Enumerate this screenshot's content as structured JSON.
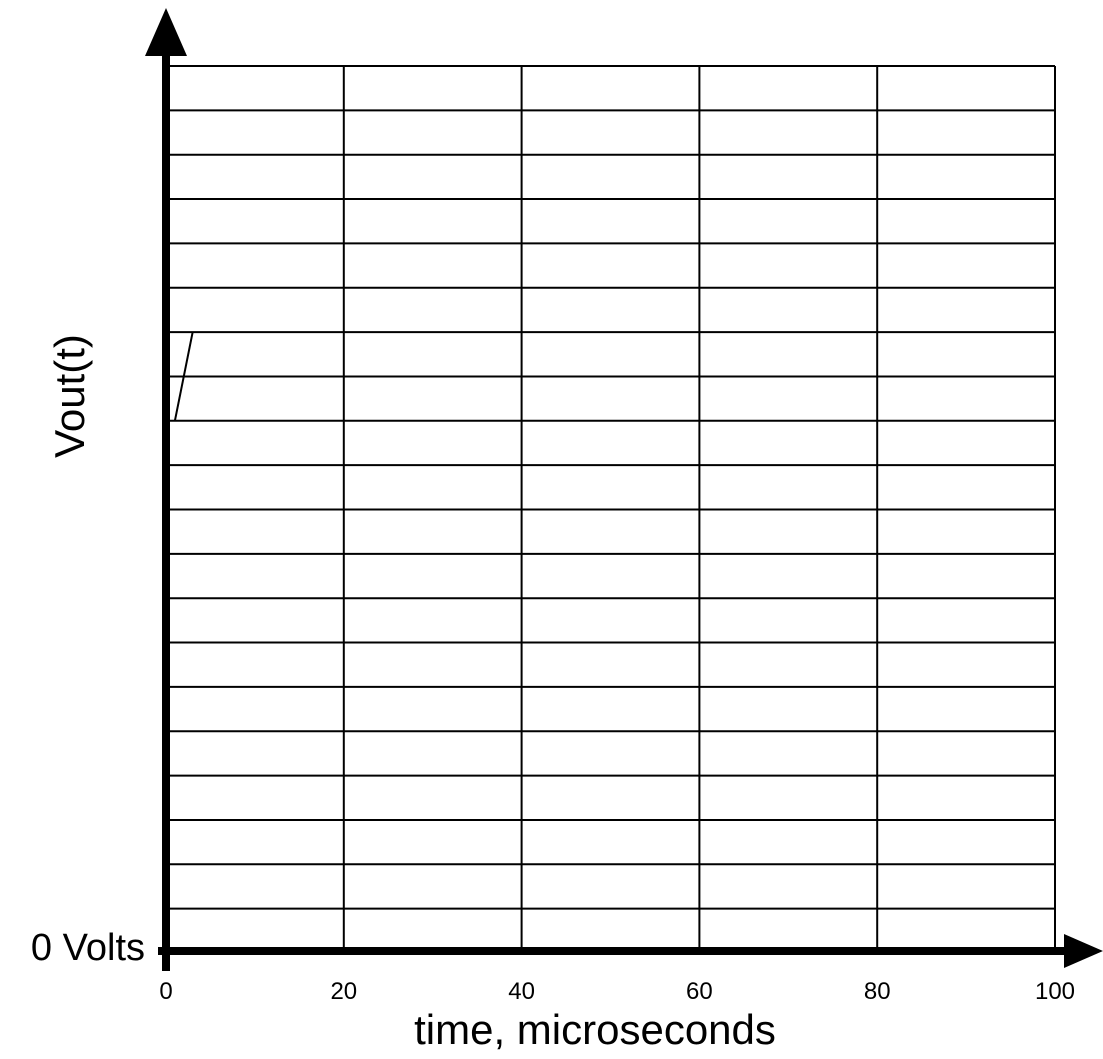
{
  "chart_data": {
    "type": "line",
    "title": "",
    "xlabel": "time, microseconds",
    "ylabel": "Vout(t)",
    "y_origin_label": "0 Volts",
    "xlim": [
      0,
      100
    ],
    "ylim": [
      0,
      20
    ],
    "x_ticks": [
      0,
      20,
      40,
      60,
      80,
      100
    ],
    "x_tick_labels": [
      "0",
      "20",
      "40",
      "60",
      "80",
      "100"
    ],
    "x_grid_step": 20,
    "y_grid_step": 1,
    "grid": true,
    "series": [
      {
        "x": [
          1,
          3
        ],
        "y": [
          12,
          14
        ]
      }
    ],
    "colors": {
      "grid": "#000000",
      "axes": "#000000",
      "line": "#000000"
    }
  }
}
